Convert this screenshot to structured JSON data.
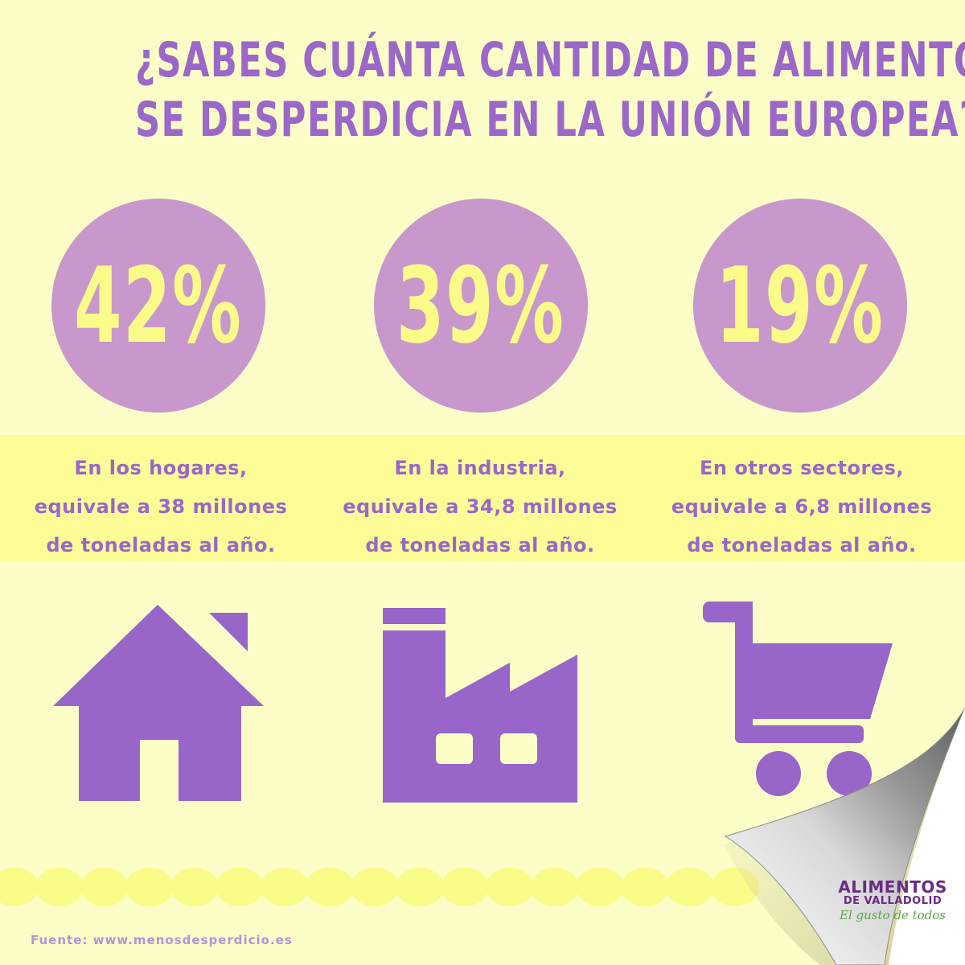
{
  "title": {
    "line1": "¿SABES CUÁNTA CANTIDAD DE ALIMENTOS",
    "line2": "SE DESPERDICIA EN LA UNIÓN EUROPEA?"
  },
  "stats": [
    {
      "percent": "42%",
      "caption": [
        "En los hogares,",
        "equivale a 38 millones",
        "de toneladas al año."
      ],
      "icon": "house-icon"
    },
    {
      "percent": "39%",
      "caption": [
        "En la industria,",
        "equivale a 34,8 millones",
        "de toneladas al año."
      ],
      "icon": "factory-icon"
    },
    {
      "percent": "19%",
      "caption": [
        "En otros sectores,",
        "equivale a 6,8 millones",
        "de toneladas al año."
      ],
      "icon": "shopping-cart-icon"
    }
  ],
  "source": "Fuente: www.menosdesperdicio.es",
  "logo": {
    "line1": "ALIMENTOS",
    "line2": "DE VALLADOLID",
    "tagline": "El gusto de todos"
  },
  "colors": {
    "background": "#fdfdc8",
    "band": "#fdfd98",
    "circle": "#c897cb",
    "accent": "#9b67c8",
    "percent_text": "#fbfb8a"
  }
}
